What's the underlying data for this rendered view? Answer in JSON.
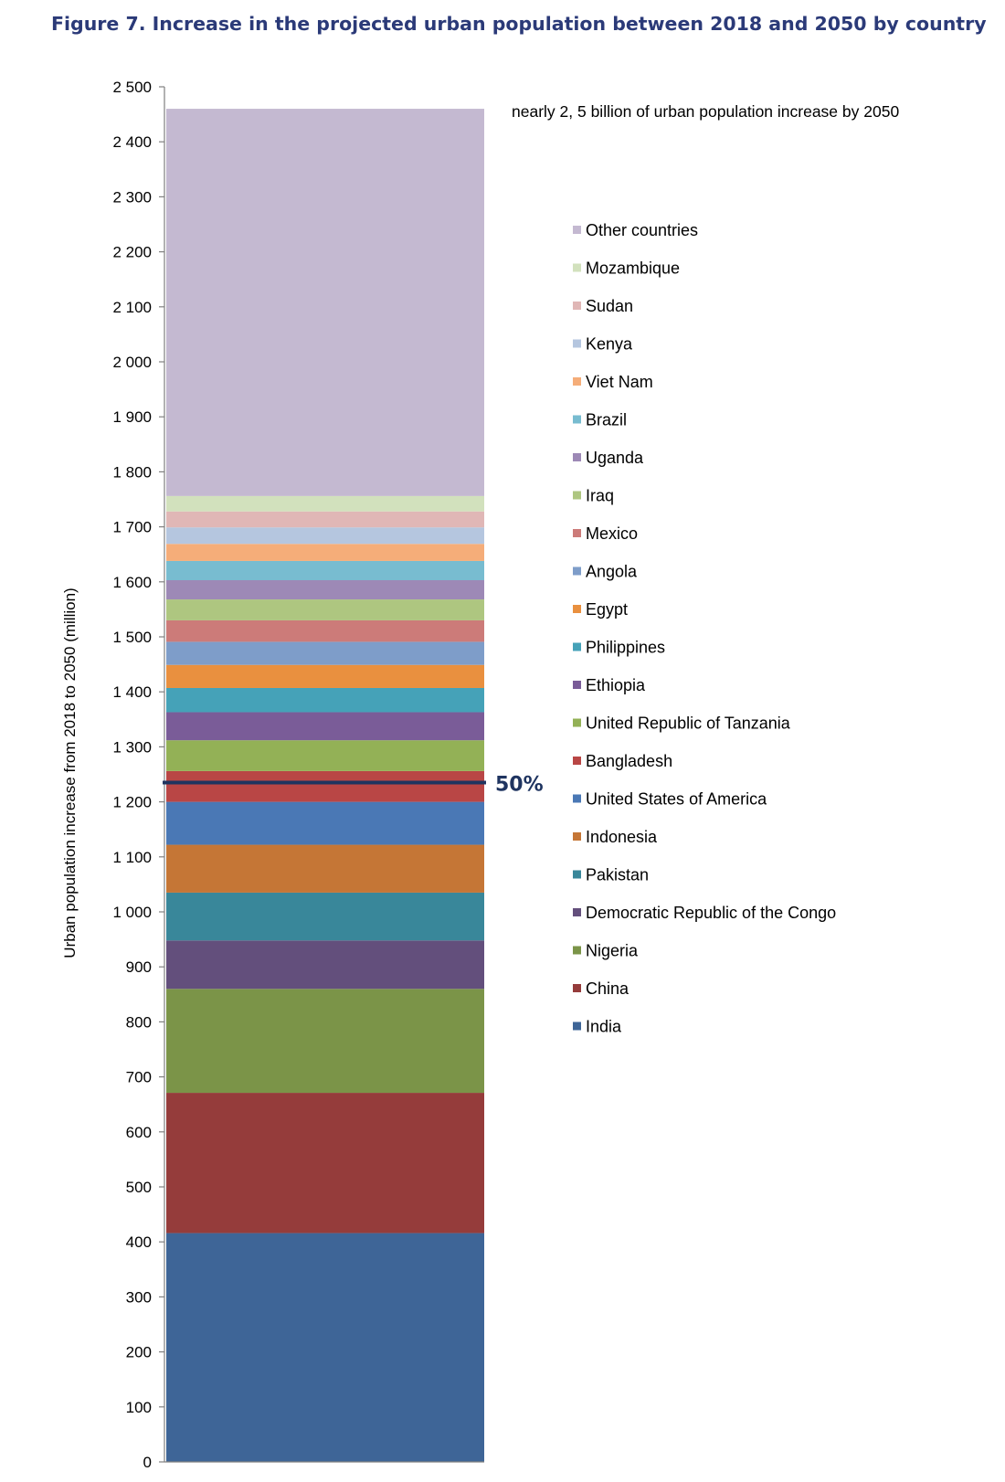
{
  "figure": {
    "title": "Figure 7. Increase in the projected urban population between 2018 and 2050 by country"
  },
  "chart_data": {
    "type": "bar",
    "stacked": true,
    "title": "Figure 7. Increase in the projected urban population between 2018 and 2050 by country",
    "ylabel": "Urban population increase from 2018 to 2050 (million)",
    "xlabel": "",
    "ylim": [
      0,
      2500
    ],
    "yticks": [
      0,
      100,
      200,
      300,
      400,
      500,
      600,
      700,
      800,
      900,
      1000,
      1100,
      1200,
      1300,
      1400,
      1500,
      1600,
      1700,
      1800,
      1900,
      2000,
      2100,
      2200,
      2300,
      2400,
      2500
    ],
    "ytick_labels": [
      "0",
      "100",
      "200",
      "300",
      "400",
      "500",
      "600",
      "700",
      "800",
      "900",
      "1 000",
      "1 100",
      "1 200",
      "1 300",
      "1 400",
      "1 500",
      "1 600",
      "1 700",
      "1 800",
      "1 900",
      "2 000",
      "2 100",
      "2 200",
      "2 300",
      "2 400",
      "2 500"
    ],
    "grid": false,
    "legend_position": "right",
    "annotation": "nearly 2, 5 billion of urban population increase by 2050",
    "marker": {
      "value": 1235,
      "label": "50%",
      "color": "#1f3460"
    },
    "series": [
      {
        "name": "India",
        "value": 416,
        "color": "#3e6597"
      },
      {
        "name": "China",
        "value": 255,
        "color": "#953c3b"
      },
      {
        "name": "Nigeria",
        "value": 189,
        "color": "#7b9448"
      },
      {
        "name": "Democratic Republic of the Congo",
        "value": 88,
        "color": "#634f7c"
      },
      {
        "name": "Pakistan",
        "value": 87,
        "color": "#39879a"
      },
      {
        "name": "Indonesia",
        "value": 87,
        "color": "#c57636"
      },
      {
        "name": "United States of America",
        "value": 78,
        "color": "#4a78b5"
      },
      {
        "name": "Bangladesh",
        "value": 56,
        "color": "#b94645"
      },
      {
        "name": "United Republic of Tanzania",
        "value": 56,
        "color": "#93b156"
      },
      {
        "name": "Ethiopia",
        "value": 51,
        "color": "#7a5c98"
      },
      {
        "name": "Philippines",
        "value": 44,
        "color": "#45a2b8"
      },
      {
        "name": "Egypt",
        "value": 42,
        "color": "#e9903f"
      },
      {
        "name": "Angola",
        "value": 42,
        "color": "#7e9dc9"
      },
      {
        "name": "Mexico",
        "value": 39,
        "color": "#cc7b79"
      },
      {
        "name": "Iraq",
        "value": 38,
        "color": "#aec680"
      },
      {
        "name": "Uganda",
        "value": 35,
        "color": "#9d89b6"
      },
      {
        "name": "Brazil",
        "value": 35,
        "color": "#78bcd0"
      },
      {
        "name": "Viet Nam",
        "value": 31,
        "color": "#f5ad79"
      },
      {
        "name": "Kenya",
        "value": 30,
        "color": "#b5c6df"
      },
      {
        "name": "Sudan",
        "value": 29,
        "color": "#e0b7b6"
      },
      {
        "name": "Mozambique",
        "value": 28,
        "color": "#d2e1bd"
      },
      {
        "name": "Other countries",
        "value": 704,
        "color": "#c4b9d1"
      }
    ]
  }
}
